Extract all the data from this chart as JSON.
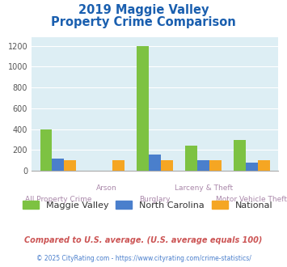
{
  "title_line1": "2019 Maggie Valley",
  "title_line2": "Property Crime Comparison",
  "title_color": "#1a5faf",
  "categories": [
    "All Property Crime",
    "Arson",
    "Burglary",
    "Larceny & Theft",
    "Motor Vehicle Theft"
  ],
  "maggie_valley": [
    400,
    0,
    1200,
    240,
    300
  ],
  "north_carolina": [
    115,
    0,
    155,
    105,
    80
  ],
  "national": [
    100,
    100,
    100,
    100,
    100
  ],
  "colors": {
    "maggie_valley": "#7dc242",
    "north_carolina": "#4a7fcc",
    "national": "#f5a623"
  },
  "ylim": [
    0,
    1280
  ],
  "yticks": [
    0,
    200,
    400,
    600,
    800,
    1000,
    1200
  ],
  "plot_bg": "#ddeef4",
  "legend_labels": [
    "Maggie Valley",
    "North Carolina",
    "National"
  ],
  "footer_text": "Compared to U.S. average. (U.S. average equals 100)",
  "footer_text2": "© 2025 CityRating.com - https://www.cityrating.com/crime-statistics/",
  "footer_color": "#cc5555",
  "footer2_color": "#4a7fcc",
  "label_color": "#aa88aa",
  "bar_width": 0.25
}
